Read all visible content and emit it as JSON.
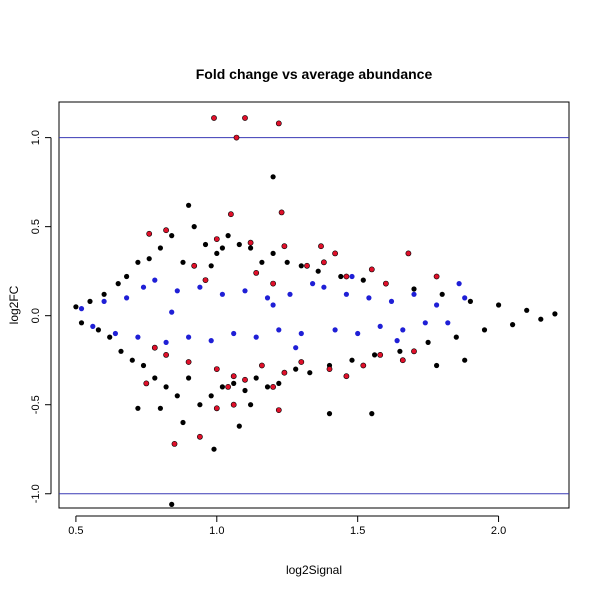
{
  "chart_data": {
    "type": "scatter",
    "title": "Fold change vs average abundance",
    "xlabel": "log2Signal",
    "ylabel": "log2FC",
    "xlim": [
      0.44,
      2.25
    ],
    "ylim": [
      -1.08,
      1.2
    ],
    "x_ticks": [
      "0.5",
      "1.0",
      "1.5",
      "2.0"
    ],
    "y_ticks": [
      "-1.0",
      "-0.5",
      "0.0",
      "0.5",
      "1.0"
    ],
    "reference_lines": [
      1.0,
      -1.0
    ],
    "reference_line_color": "#3a3ab5",
    "grid": false,
    "legend": "none",
    "series": [
      {
        "role": "all features",
        "color": "#000000",
        "points": [
          [
            0.5,
            0.05
          ],
          [
            0.52,
            -0.04
          ],
          [
            0.55,
            0.08
          ],
          [
            0.58,
            -0.08
          ],
          [
            0.6,
            0.12
          ],
          [
            0.62,
            -0.12
          ],
          [
            0.65,
            0.18
          ],
          [
            0.66,
            -0.2
          ],
          [
            0.68,
            0.22
          ],
          [
            0.7,
            -0.25
          ],
          [
            0.72,
            0.3
          ],
          [
            0.74,
            -0.28
          ],
          [
            0.76,
            0.32
          ],
          [
            0.78,
            -0.35
          ],
          [
            0.8,
            0.38
          ],
          [
            0.82,
            -0.4
          ],
          [
            0.84,
            0.45
          ],
          [
            0.86,
            -0.45
          ],
          [
            0.88,
            0.3
          ],
          [
            0.9,
            -0.35
          ],
          [
            0.92,
            0.5
          ],
          [
            0.94,
            -0.5
          ],
          [
            0.96,
            0.4
          ],
          [
            0.98,
            -0.45
          ],
          [
            1.0,
            0.35
          ],
          [
            1.02,
            -0.4
          ],
          [
            1.04,
            0.45
          ],
          [
            1.06,
            -0.38
          ],
          [
            1.08,
            0.4
          ],
          [
            1.1,
            -0.42
          ],
          [
            1.12,
            0.38
          ],
          [
            1.14,
            -0.35
          ],
          [
            1.16,
            0.3
          ],
          [
            1.18,
            -0.4
          ],
          [
            1.2,
            0.35
          ],
          [
            1.22,
            -0.38
          ],
          [
            1.25,
            0.3
          ],
          [
            1.28,
            -0.3
          ],
          [
            1.3,
            0.28
          ],
          [
            1.33,
            -0.32
          ],
          [
            1.36,
            0.25
          ],
          [
            1.4,
            -0.28
          ],
          [
            1.44,
            0.22
          ],
          [
            1.48,
            -0.25
          ],
          [
            1.52,
            0.2
          ],
          [
            1.56,
            -0.22
          ],
          [
            1.6,
            0.18
          ],
          [
            1.65,
            -0.2
          ],
          [
            1.7,
            0.15
          ],
          [
            1.75,
            -0.15
          ],
          [
            1.8,
            0.12
          ],
          [
            1.85,
            -0.12
          ],
          [
            1.9,
            0.08
          ],
          [
            1.95,
            -0.08
          ],
          [
            2.0,
            0.06
          ],
          [
            2.05,
            -0.05
          ],
          [
            2.1,
            0.03
          ],
          [
            2.15,
            -0.02
          ],
          [
            2.2,
            0.01
          ],
          [
            1.2,
            0.78
          ],
          [
            0.9,
            0.62
          ],
          [
            0.88,
            -0.6
          ],
          [
            0.84,
            -1.06
          ],
          [
            0.99,
            -0.75
          ],
          [
            1.55,
            -0.55
          ],
          [
            1.4,
            -0.55
          ],
          [
            0.8,
            -0.52
          ],
          [
            1.78,
            -0.28
          ],
          [
            1.88,
            -0.25
          ],
          [
            0.72,
            -0.52
          ],
          [
            1.08,
            -0.62
          ],
          [
            1.12,
            -0.5
          ],
          [
            1.02,
            0.38
          ],
          [
            0.98,
            0.28
          ]
        ]
      },
      {
        "role": "highlighted (blue)",
        "color": "#1f1fd6",
        "points": [
          [
            0.52,
            0.04
          ],
          [
            0.56,
            -0.06
          ],
          [
            0.6,
            0.08
          ],
          [
            0.64,
            -0.1
          ],
          [
            0.68,
            0.1
          ],
          [
            0.72,
            -0.12
          ],
          [
            0.74,
            0.16
          ],
          [
            0.78,
            0.2
          ],
          [
            0.82,
            -0.15
          ],
          [
            0.86,
            0.14
          ],
          [
            0.9,
            -0.12
          ],
          [
            0.94,
            0.16
          ],
          [
            0.98,
            -0.14
          ],
          [
            1.02,
            0.12
          ],
          [
            1.06,
            -0.1
          ],
          [
            1.1,
            0.14
          ],
          [
            1.14,
            -0.12
          ],
          [
            1.18,
            0.1
          ],
          [
            1.22,
            -0.08
          ],
          [
            1.26,
            0.12
          ],
          [
            1.3,
            -0.1
          ],
          [
            1.34,
            0.18
          ],
          [
            1.38,
            0.16
          ],
          [
            1.42,
            -0.08
          ],
          [
            1.46,
            0.12
          ],
          [
            1.5,
            -0.1
          ],
          [
            1.54,
            0.1
          ],
          [
            1.58,
            -0.06
          ],
          [
            1.62,
            0.08
          ],
          [
            1.66,
            -0.08
          ],
          [
            1.7,
            0.12
          ],
          [
            1.74,
            -0.04
          ],
          [
            1.78,
            0.06
          ],
          [
            1.82,
            -0.04
          ],
          [
            1.86,
            0.18
          ],
          [
            1.88,
            0.1
          ],
          [
            1.2,
            0.06
          ],
          [
            0.84,
            0.02
          ],
          [
            1.28,
            -0.18
          ],
          [
            1.48,
            0.22
          ],
          [
            1.64,
            -0.14
          ]
        ]
      },
      {
        "role": "highlighted (red)",
        "color": "#e0102a",
        "points": [
          [
            0.99,
            1.11
          ],
          [
            1.1,
            1.11
          ],
          [
            1.22,
            1.08
          ],
          [
            1.07,
            1.0
          ],
          [
            1.05,
            0.57
          ],
          [
            1.23,
            0.58
          ],
          [
            0.76,
            0.46
          ],
          [
            0.82,
            0.48
          ],
          [
            1.0,
            0.43
          ],
          [
            1.12,
            0.41
          ],
          [
            1.24,
            0.39
          ],
          [
            1.37,
            0.39
          ],
          [
            1.42,
            0.35
          ],
          [
            1.68,
            0.35
          ],
          [
            1.38,
            0.3
          ],
          [
            1.55,
            0.26
          ],
          [
            1.78,
            0.22
          ],
          [
            1.32,
            0.28
          ],
          [
            1.46,
            0.22
          ],
          [
            0.96,
            0.2
          ],
          [
            1.2,
            0.18
          ],
          [
            1.14,
            0.24
          ],
          [
            0.92,
            0.28
          ],
          [
            1.6,
            0.18
          ],
          [
            0.78,
            -0.18
          ],
          [
            0.82,
            -0.22
          ],
          [
            0.9,
            -0.26
          ],
          [
            1.0,
            -0.3
          ],
          [
            1.06,
            -0.34
          ],
          [
            1.16,
            -0.28
          ],
          [
            1.24,
            -0.32
          ],
          [
            1.3,
            -0.26
          ],
          [
            1.4,
            -0.3
          ],
          [
            1.52,
            -0.28
          ],
          [
            1.58,
            -0.22
          ],
          [
            1.66,
            -0.25
          ],
          [
            1.7,
            -0.2
          ],
          [
            1.46,
            -0.34
          ],
          [
            1.2,
            -0.4
          ],
          [
            0.75,
            -0.38
          ],
          [
            0.85,
            -0.72
          ],
          [
            0.94,
            -0.68
          ],
          [
            1.0,
            -0.52
          ],
          [
            1.06,
            -0.5
          ],
          [
            1.22,
            -0.53
          ],
          [
            1.04,
            -0.4
          ],
          [
            1.1,
            -0.36
          ]
        ]
      }
    ]
  }
}
